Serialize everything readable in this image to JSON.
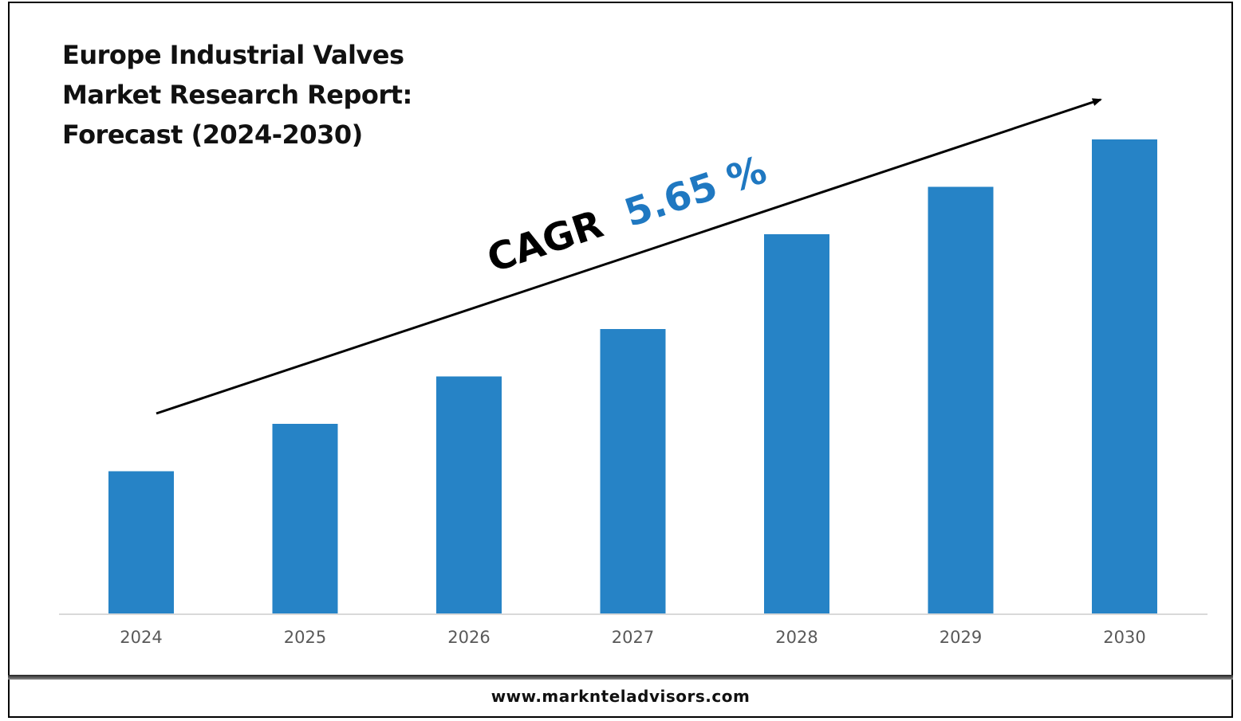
{
  "chart_data": {
    "type": "bar",
    "title_lines": [
      "Europe Industrial Valves",
      "Market Research Report:",
      "Forecast (2024-2030)"
    ],
    "categories": [
      "2024",
      "2025",
      "2026",
      "2027",
      "2028",
      "2029",
      "2030"
    ],
    "values": [
      30,
      40,
      50,
      60,
      80,
      90,
      100
    ],
    "ylim": [
      0,
      100
    ],
    "bar_color": "#2683C6",
    "annotation": {
      "label": "CAGR",
      "value": "5.65 %",
      "value_color": "#1F78C1"
    },
    "grid": false,
    "legend": "none"
  },
  "footer": {
    "url": "www.marknteladvisors.com"
  }
}
